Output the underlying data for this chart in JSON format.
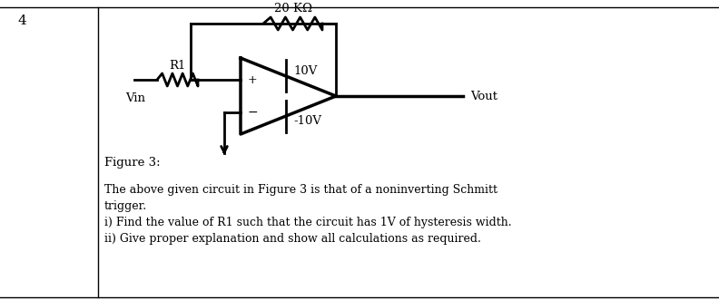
{
  "question_number": "4",
  "resistor_label": "20 KΩ",
  "r1_label": "R1",
  "vin_label": "Vin",
  "vout_label": "Vout",
  "pos_supply": "10V",
  "neg_supply": "-10V",
  "figure_label": "Figure 3:",
  "text_line1": "The above given circuit in Figure 3 is that of a noninverting Schmitt",
  "text_line2": "trigger.",
  "text_line3": "i) Find the value of R1 such that the circuit has 1V of hysteresis width.",
  "text_line4": "ii) Give proper explanation and show all calculations as required.",
  "bg_color": "#ffffff",
  "line_color": "#000000",
  "font_size_text": 9.0,
  "font_size_label": 9.5,
  "font_size_qnum": 11,
  "lw": 2.0
}
